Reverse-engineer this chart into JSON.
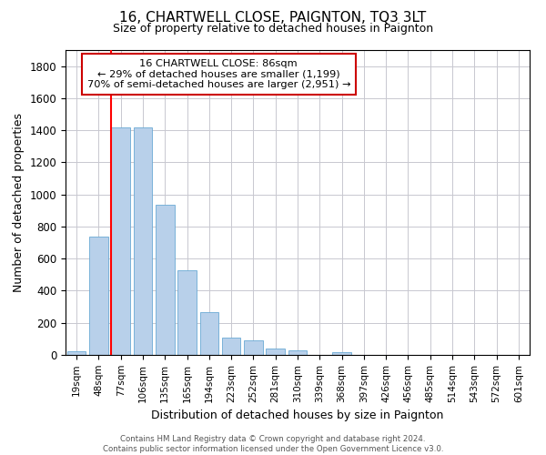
{
  "title": "16, CHARTWELL CLOSE, PAIGNTON, TQ3 3LT",
  "subtitle": "Size of property relative to detached houses in Paignton",
  "xlabel": "Distribution of detached houses by size in Paignton",
  "ylabel": "Number of detached properties",
  "footer_line1": "Contains HM Land Registry data © Crown copyright and database right 2024.",
  "footer_line2": "Contains public sector information licensed under the Open Government Licence v3.0.",
  "bin_labels": [
    "19sqm",
    "48sqm",
    "77sqm",
    "106sqm",
    "135sqm",
    "165sqm",
    "194sqm",
    "223sqm",
    "252sqm",
    "281sqm",
    "310sqm",
    "339sqm",
    "368sqm",
    "397sqm",
    "426sqm",
    "456sqm",
    "485sqm",
    "514sqm",
    "543sqm",
    "572sqm",
    "601sqm"
  ],
  "bar_values": [
    22,
    740,
    1420,
    1420,
    935,
    530,
    265,
    105,
    90,
    38,
    28,
    0,
    15,
    0,
    0,
    0,
    0,
    0,
    0,
    0,
    0
  ],
  "bar_color": "#b8d0ea",
  "bar_edgecolor": "#6aaad4",
  "grid_color": "#c8c8d0",
  "red_line_index": 2,
  "annotation_line1": "16 CHARTWELL CLOSE: 86sqm",
  "annotation_line2": "← 29% of detached houses are smaller (1,199)",
  "annotation_line3": "70% of semi-detached houses are larger (2,951) →",
  "annotation_box_facecolor": "#ffffff",
  "annotation_box_edgecolor": "#cc0000",
  "ylim": [
    0,
    1900
  ],
  "yticks": [
    0,
    200,
    400,
    600,
    800,
    1000,
    1200,
    1400,
    1600,
    1800
  ],
  "title_fontsize": 11,
  "subtitle_fontsize": 9,
  "ylabel_fontsize": 9,
  "xlabel_fontsize": 9,
  "bg_color": "#ffffff"
}
